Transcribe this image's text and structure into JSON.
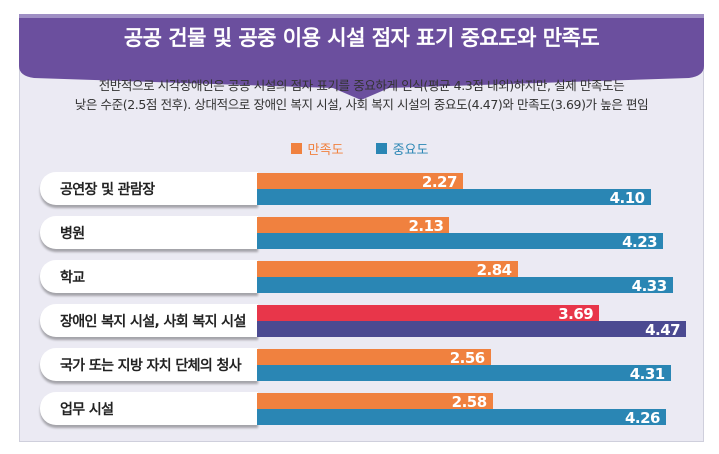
{
  "title": "공공 건물 및 공중 이용 시설 점자 표기 중요도와 만족도",
  "subtitle_lines": [
    "전반적으로 시각장애인은 공공 시설의 점자 표기를 중요하게 인식(평균 4.3점 내외)하지만, 실제 만족도는",
    "낮은 수준(2.5점 전후). 상대적으로 장애인 복지 시설, 사회 복지 시설의 중요도(4.47)와 만족도(3.69)가 높은 편임"
  ],
  "colors": {
    "banner": "#6b4f9e",
    "satisfaction": "#f0813f",
    "importance": "#2a86b4",
    "highlight_satisfaction": "#e8364a",
    "highlight_importance": "#4b4a91"
  },
  "chart_data": {
    "type": "bar",
    "orientation": "horizontal",
    "categories": [
      "공연장 및 관람장",
      "병원",
      "학교",
      "장애인 복지 시설, 사회 복지 시설",
      "국가 또는 지방 자치 단체의 청사",
      "업무 시설"
    ],
    "series": [
      {
        "name": "만족도",
        "values": [
          2.27,
          2.13,
          2.84,
          3.69,
          2.56,
          2.58
        ]
      },
      {
        "name": "중요도",
        "values": [
          4.1,
          4.23,
          4.33,
          4.47,
          4.31,
          4.26
        ]
      }
    ],
    "value_labels": [
      [
        "2.27",
        "2.13",
        "2.84",
        "3.69",
        "2.56",
        "2.58"
      ],
      [
        "4.10",
        "4.23",
        "4.33",
        "4.47",
        "4.31",
        "4.26"
      ]
    ],
    "highlight_index": 3,
    "legend_position": "top-center",
    "grid": false
  }
}
